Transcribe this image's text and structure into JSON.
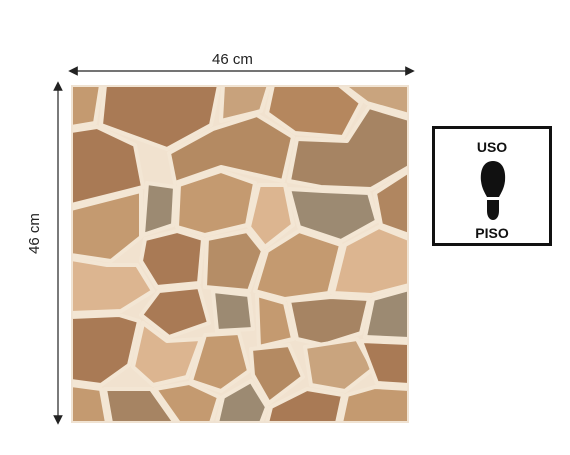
{
  "dimensions": {
    "width_label": "46 cm",
    "height_label": "46 cm"
  },
  "usage_badge": {
    "top_text": "USO",
    "bottom_text": "PISO",
    "icon": "footprint-icon"
  },
  "tile": {
    "pattern": "irregular flagstone mosaic",
    "colors": {
      "grout": "#f1e2cf",
      "stone_brown": "#a97a55",
      "stone_tan": "#c49a70",
      "stone_light": "#dcb590",
      "stone_grey": "#9c8a72"
    }
  }
}
